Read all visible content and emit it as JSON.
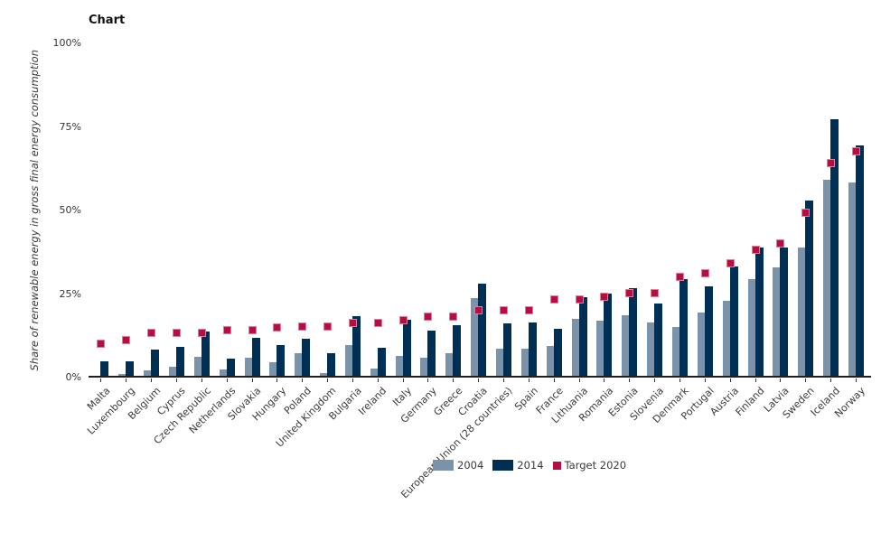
{
  "title": "Chart",
  "y_axis": {
    "label": "Share of renewable energy in gross final energy consumption",
    "tick_labels": [
      "0%",
      "25%",
      "50%",
      "75%",
      "100%"
    ]
  },
  "legend": {
    "items": [
      {
        "label": "2004",
        "color": "#7a93ab",
        "shape": "bar-swatch"
      },
      {
        "label": "2014",
        "color": "#002f56",
        "shape": "bar-swatch"
      },
      {
        "label": "Target 2020",
        "color": "#b60d43",
        "shape": "square-marker"
      }
    ]
  },
  "colors": {
    "bar_2004": "#7a93ab",
    "bar_2014": "#002f56",
    "target_2020": "#b60d43",
    "axis_line": "#1f1f1f",
    "tick_text": "#333333"
  },
  "chart_data": {
    "type": "bar",
    "title": "Chart",
    "xlabel": "",
    "ylabel": "Share of renewable energy in gross final energy consumption",
    "ylim": [
      0,
      100
    ],
    "yticks": [
      0,
      25,
      50,
      75,
      100
    ],
    "ytick_format": "percent",
    "grid": false,
    "legend_position": "bottom-center",
    "x_label_rotation": 45,
    "categories": [
      "Malta",
      "Luxembourg",
      "Belgium",
      "Cyprus",
      "Czech Republic",
      "Netherlands",
      "Slovakia",
      "Hungary",
      "Poland",
      "United Kingdom",
      "Bulgaria",
      "Ireland",
      "Italy",
      "Germany",
      "Greece",
      "Croatia",
      "European Union (28 countries)",
      "Spain",
      "France",
      "Lithuania",
      "Romania",
      "Estonia",
      "Slovenia",
      "Denmark",
      "Portugal",
      "Austria",
      "Finland",
      "Latvia",
      "Sweden",
      "Iceland",
      "Norway"
    ],
    "series": [
      {
        "name": "2004",
        "type": "bar",
        "color": "#7a93ab",
        "values": [
          0.1,
          0.9,
          1.9,
          3.1,
          5.9,
          2.1,
          5.7,
          4.4,
          6.9,
          1.2,
          9.4,
          2.4,
          6.3,
          5.8,
          6.9,
          23.5,
          8.5,
          8.4,
          9.3,
          17.2,
          16.8,
          18.4,
          16.1,
          14.9,
          19.2,
          22.8,
          29.2,
          32.8,
          38.7,
          58.9,
          58.1
        ]
      },
      {
        "name": "2014",
        "type": "bar",
        "color": "#002f56",
        "values": [
          4.7,
          4.5,
          8.0,
          8.9,
          13.4,
          5.5,
          11.6,
          9.5,
          11.4,
          7.0,
          18.0,
          8.6,
          17.1,
          13.8,
          15.3,
          27.9,
          16.0,
          16.2,
          14.3,
          23.9,
          24.9,
          26.5,
          21.9,
          29.2,
          27.0,
          33.1,
          38.7,
          38.7,
          52.6,
          77.1,
          69.2
        ]
      },
      {
        "name": "Target 2020",
        "type": "scatter",
        "marker": "square",
        "color": "#b60d43",
        "values": [
          10,
          11,
          13,
          13,
          13,
          14,
          14,
          14.65,
          15,
          15,
          16,
          16,
          17,
          18,
          18,
          20,
          20,
          20,
          23,
          23,
          24,
          25,
          25,
          30,
          31,
          34,
          38,
          40,
          49,
          64,
          67.5
        ]
      }
    ]
  }
}
